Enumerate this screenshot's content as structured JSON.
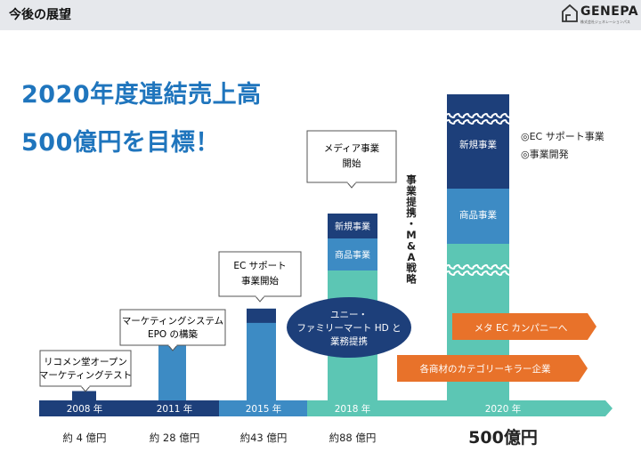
{
  "header": {
    "title": "今後の展望",
    "logo_text": "GENEPA",
    "logo_sub": "株式会社ジェネレーションパス"
  },
  "headline": {
    "line1": "2020年度連結売上高",
    "line2": "500億円を目標！"
  },
  "colors": {
    "navy": "#1d3f7a",
    "blue": "#3d8bc4",
    "teal": "#5cc6b4",
    "orange": "#e8722a",
    "headline": "#1f75bd"
  },
  "chart_data": {
    "type": "bar",
    "categories": [
      "2008 年",
      "2011 年",
      "2015 年",
      "2018 年",
      "2020 年"
    ],
    "values": [
      4,
      28,
      43,
      88,
      500
    ],
    "value_labels": [
      "約 4 億円",
      "約 28 億円",
      "約43 億円",
      "約88 億円",
      "500億円"
    ],
    "segments_2018": [
      "新規事業",
      "商品事業"
    ],
    "segments_2020": [
      "新規事業",
      "商品事業"
    ],
    "annotations": {
      "2008": [
        "リコメン堂オープン",
        "マーケティングテスト"
      ],
      "2011": [
        "マーケティングシステム",
        "EPO の構築"
      ],
      "2015": [
        "EC サポート",
        "事業開始"
      ],
      "2018": [
        "メディア事業",
        "開始"
      ],
      "alliance": [
        "ユニー・",
        "ファミリーマート HD と",
        "業務提携"
      ],
      "vertical": "事業提携・M&A戦略",
      "right": [
        "◎EC サポート事業",
        "◎事業開発"
      ],
      "arrows": [
        "メタ EC カンパニーへ",
        "各商材のカテゴリーキラー企業"
      ]
    }
  }
}
